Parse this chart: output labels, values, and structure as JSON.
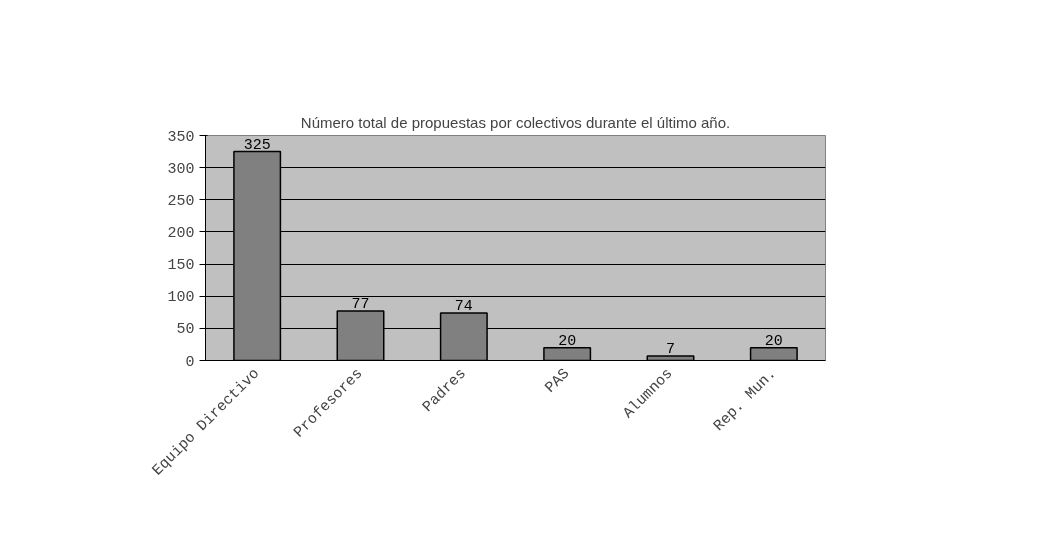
{
  "chart_data": {
    "type": "bar",
    "title": "Número total de propuestas por colectivos durante el último año.",
    "categories": [
      "Equipo Directivo",
      "Profesores",
      "Padres",
      "PAS",
      "Alumnos",
      "Rep. Mun."
    ],
    "values": [
      325,
      77,
      74,
      20,
      7,
      20
    ],
    "color": "#808080",
    "ylim": [
      0,
      350
    ],
    "yticks": [
      0,
      50,
      100,
      150,
      200,
      250,
      300,
      350
    ],
    "grid": "y",
    "data_labels": true
  }
}
